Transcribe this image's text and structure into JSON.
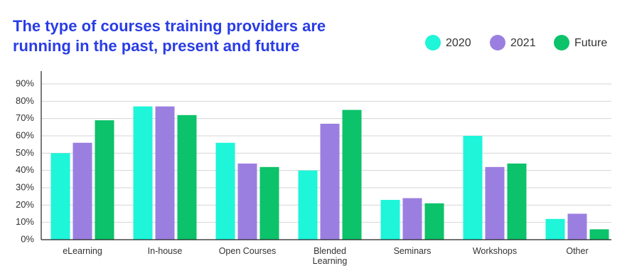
{
  "chart_data": {
    "type": "bar",
    "title": [
      "The type of courses training providers are",
      "running in the past, present and future"
    ],
    "categories": [
      "eLearning",
      "In-house",
      "Open Courses",
      "Blended Learning",
      "Seminars",
      "Workshops",
      "Other"
    ],
    "series": [
      {
        "name": "2020",
        "color": "#1ef5d9",
        "values": [
          50,
          77,
          56,
          40,
          23,
          60,
          12
        ]
      },
      {
        "name": "2021",
        "color": "#9b7fe0",
        "values": [
          56,
          77,
          44,
          67,
          24,
          42,
          15
        ]
      },
      {
        "name": "Future",
        "color": "#0cc26a",
        "values": [
          69,
          72,
          42,
          75,
          21,
          44,
          6
        ]
      }
    ],
    "ylim": [
      0,
      90
    ],
    "yticks": [
      {
        "value": 0,
        "label": "0%"
      },
      {
        "value": 10,
        "label": "10%"
      },
      {
        "value": 20,
        "label": "20%"
      },
      {
        "value": 30,
        "label": "30%"
      },
      {
        "value": 40,
        "label": "40%"
      },
      {
        "value": 50,
        "label": "50%"
      },
      {
        "value": 60,
        "label": "60%"
      },
      {
        "value": 70,
        "label": "70%"
      },
      {
        "value": 80,
        "label": "80%"
      },
      {
        "value": 90,
        "label": "90%"
      }
    ],
    "grid": true,
    "legend": "top-right"
  }
}
